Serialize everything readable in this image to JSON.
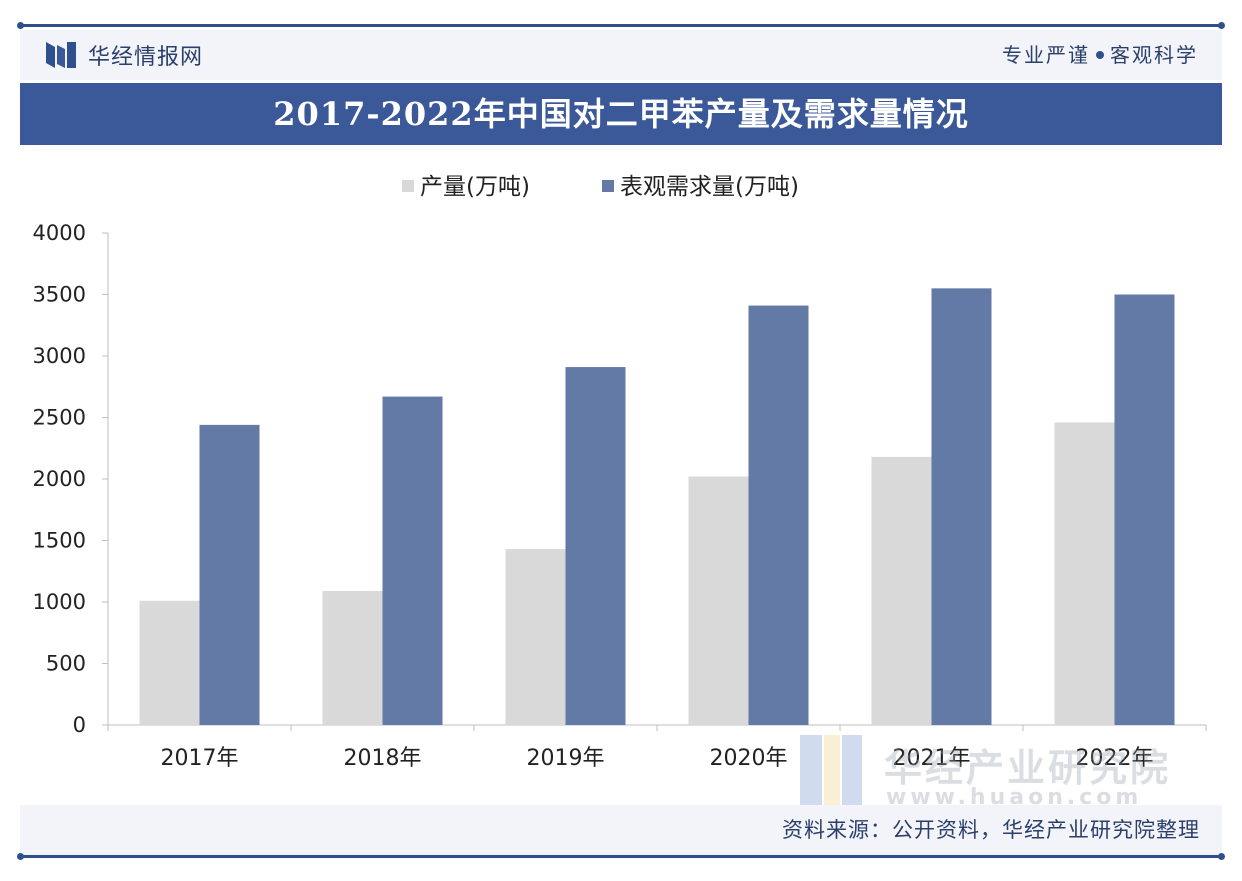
{
  "header": {
    "brand_name": "华经情报网",
    "slogan_left": "专业严谨",
    "slogan_right": "客观科学"
  },
  "footer": {
    "source": "资料来源：公开资料，华经产业研究院整理"
  },
  "watermark": {
    "name": "华经产业研究院",
    "url": "www.huaon.com"
  },
  "colors": {
    "brand": "#3b5998",
    "production": "#d9d9d9",
    "demand": "#6379a6"
  },
  "chart_data": {
    "type": "bar",
    "title": "2017-2022年中国对二甲苯产量及需求量情况",
    "categories": [
      "2017年",
      "2018年",
      "2019年",
      "2020年",
      "2021年",
      "2022年"
    ],
    "series": [
      {
        "name": "产量(万吨)",
        "color": "#d9d9d9",
        "values": [
          1010,
          1090,
          1430,
          2020,
          2180,
          2460
        ]
      },
      {
        "name": "表观需求量(万吨)",
        "color": "#6379a6",
        "values": [
          2440,
          2670,
          2910,
          3410,
          3550,
          3500
        ]
      }
    ],
    "ylim": [
      0,
      4000
    ],
    "yticks": [
      0,
      500,
      1000,
      1500,
      2000,
      2500,
      3000,
      3500,
      4000
    ],
    "xlabel": "",
    "ylabel": "",
    "legend": "top-left",
    "grid": false
  }
}
